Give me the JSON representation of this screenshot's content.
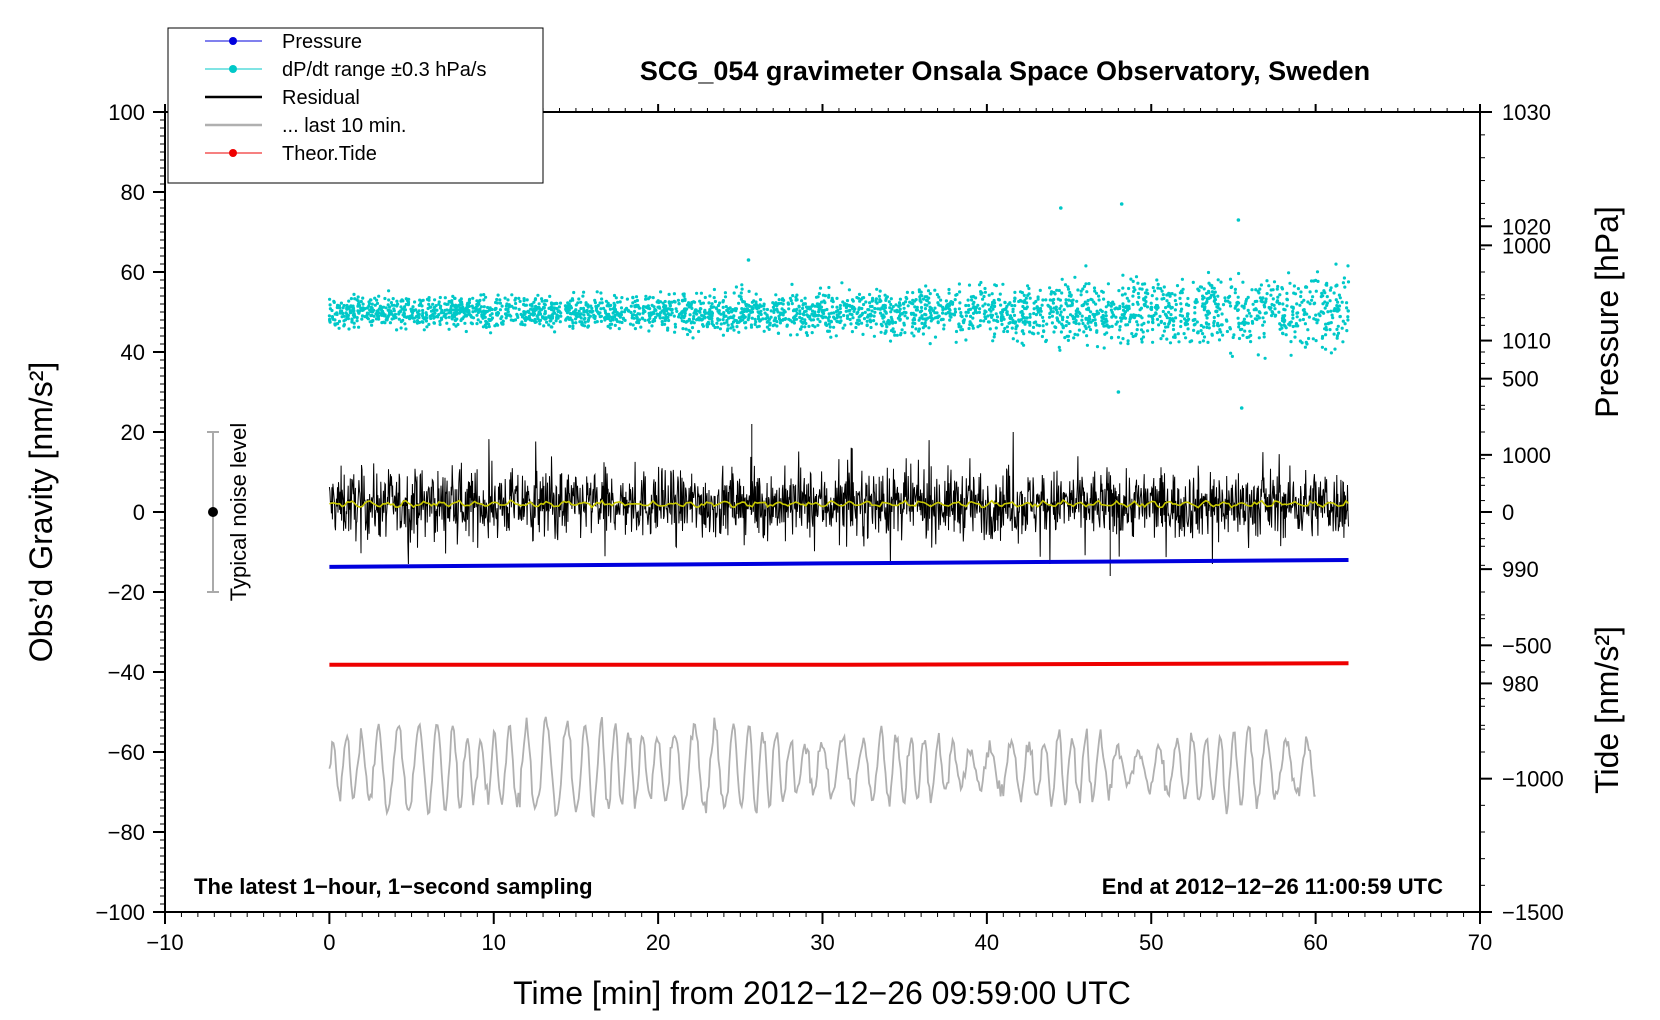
{
  "chart_data": {
    "type": "line",
    "title": "SCG_054 gravimeter Onsala Space Observatory, Sweden",
    "xlabel": "Time [min] from 2012−12−26 09:59:00 UTC",
    "ylabel_left": "Obs’d Gravity [nm/s²]",
    "ylabel_right_pressure": "Pressure [hPa]",
    "ylabel_right_tide": "Tide [nm/s²]",
    "xlim": [
      -10,
      70
    ],
    "ylim_left": [
      -100,
      100
    ],
    "x_ticks": [
      {
        "v": -10,
        "label": "−10"
      },
      {
        "v": 0,
        "label": "0"
      },
      {
        "v": 10,
        "label": "10"
      },
      {
        "v": 20,
        "label": "20"
      },
      {
        "v": 30,
        "label": "30"
      },
      {
        "v": 40,
        "label": "40"
      },
      {
        "v": 50,
        "label": "50"
      },
      {
        "v": 60,
        "label": "60"
      },
      {
        "v": 70,
        "label": "70"
      }
    ],
    "y_ticks_left": [
      {
        "v": 100,
        "label": "100"
      },
      {
        "v": 80,
        "label": "80"
      },
      {
        "v": 60,
        "label": "60"
      },
      {
        "v": 40,
        "label": "40"
      },
      {
        "v": 20,
        "label": "20"
      },
      {
        "v": 0,
        "label": "0"
      },
      {
        "v": -20,
        "label": "−20"
      },
      {
        "v": -40,
        "label": "−40"
      },
      {
        "v": -60,
        "label": "−60"
      },
      {
        "v": -80,
        "label": "−80"
      },
      {
        "v": -100,
        "label": "−100"
      }
    ],
    "pressure_axis": {
      "range": [
        960,
        1030
      ],
      "ticks": [
        {
          "v": 1030,
          "label": "1030"
        },
        {
          "v": 1020,
          "label": "1020"
        },
        {
          "v": 1010,
          "label": "1010"
        },
        {
          "v": 1000,
          "label": "1000"
        },
        {
          "v": 990,
          "label": "990"
        },
        {
          "v": 980,
          "label": "980"
        }
      ]
    },
    "tide_axis": {
      "range": [
        -1500,
        1500
      ],
      "ticks": [
        {
          "v": 1000,
          "label": "1000"
        },
        {
          "v": 500,
          "label": "500"
        },
        {
          "v": 0,
          "label": "0"
        },
        {
          "v": -500,
          "label": "−500"
        },
        {
          "v": -1000,
          "label": "−1000"
        },
        {
          "v": -1500,
          "label": "−1500"
        }
      ]
    },
    "legend": {
      "position": "top-left",
      "entries": [
        {
          "name": "Pressure",
          "color": "#0000dd",
          "marker": "dot"
        },
        {
          "name": "dP/dt range ±0.3 hPa/s",
          "color": "#00c8c8",
          "marker": "dot"
        },
        {
          "name": "Residual",
          "color": "#000000",
          "marker": "line"
        },
        {
          "name": "... last 10 min.",
          "color": "#b0b0b0",
          "marker": "line"
        },
        {
          "name": "Theor.Tide",
          "color": "#ee0000",
          "marker": "dot"
        }
      ]
    },
    "series": [
      {
        "name": "Pressure",
        "axis": "pressure",
        "color": "#0000dd",
        "x_range": [
          0,
          62
        ],
        "values_approx": [
          {
            "x": 0,
            "y": 990.2
          },
          {
            "x": 30,
            "y": 990.5
          },
          {
            "x": 62,
            "y": 990.8
          }
        ]
      },
      {
        "name": "dP/dt range ±0.3 hPa/s",
        "axis": "left_offset",
        "color": "#00c8c8",
        "x_range": [
          0,
          62
        ],
        "center": 50,
        "spread_start": 4,
        "spread_end": 12,
        "extremes": [
          {
            "x": 44.5,
            "y": 76
          },
          {
            "x": 48.2,
            "y": 77
          },
          {
            "x": 55.3,
            "y": 73
          },
          {
            "x": 25.5,
            "y": 63
          },
          {
            "x": 55.5,
            "y": 26
          },
          {
            "x": 48,
            "y": 30
          }
        ]
      },
      {
        "name": "Residual",
        "axis": "left",
        "color": "#000000",
        "x_range": [
          0,
          62
        ],
        "center": 2,
        "spread": 10,
        "extremes": [
          {
            "x": 25.7,
            "y": 22
          },
          {
            "x": 47.5,
            "y": -16
          }
        ]
      },
      {
        "name": "residual smoothed",
        "axis": "left",
        "color": "#c8c800",
        "x_range": [
          0,
          62
        ],
        "center": 2
      },
      {
        "name": "... last 10 min.",
        "axis": "left",
        "color": "#b0b0b0",
        "x_range": [
          0,
          60
        ],
        "center": -64,
        "amplitude": 10,
        "extremes": [
          {
            "x": 44,
            "y": -48
          },
          {
            "x": 10.5,
            "y": -75
          }
        ]
      },
      {
        "name": "Theor.Tide",
        "axis": "left",
        "color": "#ee0000",
        "x_range": [
          0,
          62
        ],
        "values_approx": [
          {
            "x": 0,
            "y": -38.2
          },
          {
            "x": 31.5,
            "y": -38.2
          },
          {
            "x": 62,
            "y": -37.8
          }
        ]
      }
    ],
    "noise_indicator": {
      "x": -7,
      "center": 0,
      "range": [
        -20,
        20
      ],
      "label": "Typical noise level"
    },
    "annotations": {
      "bottom_left": "The latest 1−hour, 1−second sampling",
      "bottom_right": "End at 2012−12−26 11:00:59 UTC"
    },
    "grid": false
  }
}
